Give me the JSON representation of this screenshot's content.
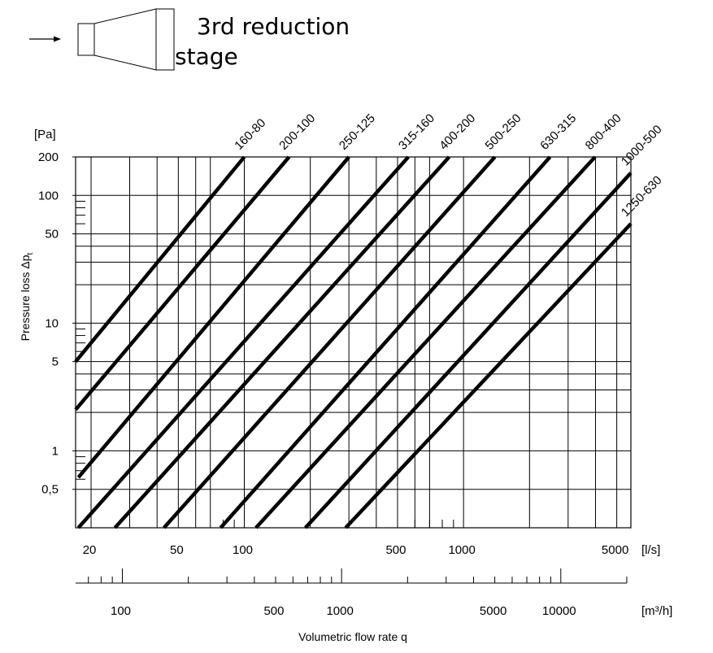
{
  "header": {
    "title_line1": "3rd reduction",
    "title_line2": "stage",
    "icon": "reducer-icon",
    "arrow_icon": "flow-arrow-icon"
  },
  "chart_data": {
    "type": "line",
    "title": "3rd reduction stage",
    "xscale": "log",
    "yscale": "log",
    "xlim": [
      17,
      5800
    ],
    "ylim": [
      0.25,
      200
    ],
    "grid": true,
    "xlabel": "Volumetric flow rate q",
    "ylabel": "Pressure loss Δp",
    "ylabel_subscript": "t",
    "y_unit": "[Pa]",
    "x_unit": "[l/s]",
    "x2_unit": "[m³/h]",
    "y_ticks": [
      "200",
      "100",
      "50",
      "10",
      "5",
      "1",
      "0,5"
    ],
    "x_ticks": [
      "20",
      "50",
      "100",
      "500",
      "1000",
      "5000"
    ],
    "x2_ticks": [
      "100",
      "500",
      "1000",
      "5000",
      "10000"
    ],
    "series": [
      {
        "name": "160-80",
        "points": [
          [
            17.0,
            5.0
          ],
          [
            100,
            200
          ]
        ]
      },
      {
        "name": "200-100",
        "points": [
          [
            17.0,
            2.1
          ],
          [
            160,
            200
          ]
        ]
      },
      {
        "name": "250-125",
        "points": [
          [
            17.5,
            0.62
          ],
          [
            300,
            200
          ]
        ]
      },
      {
        "name": "315-160",
        "points": [
          [
            17.5,
            0.25
          ],
          [
            560,
            200
          ]
        ]
      },
      {
        "name": "400-200",
        "points": [
          [
            25.7,
            0.25
          ],
          [
            860,
            200
          ]
        ]
      },
      {
        "name": "500-250",
        "points": [
          [
            43.0,
            0.25
          ],
          [
            1390,
            200
          ]
        ]
      },
      {
        "name": "630-315",
        "points": [
          [
            78.0,
            0.25
          ],
          [
            2480,
            200
          ]
        ]
      },
      {
        "name": "800-400",
        "points": [
          [
            113.0,
            0.25
          ],
          [
            3980,
            200
          ]
        ]
      },
      {
        "name": "1000-500",
        "points": [
          [
            190.0,
            0.25
          ],
          [
            5800,
            150
          ]
        ]
      },
      {
        "name": "1250-630",
        "points": [
          [
            290.0,
            0.25
          ],
          [
            5800,
            60
          ]
        ]
      }
    ]
  }
}
